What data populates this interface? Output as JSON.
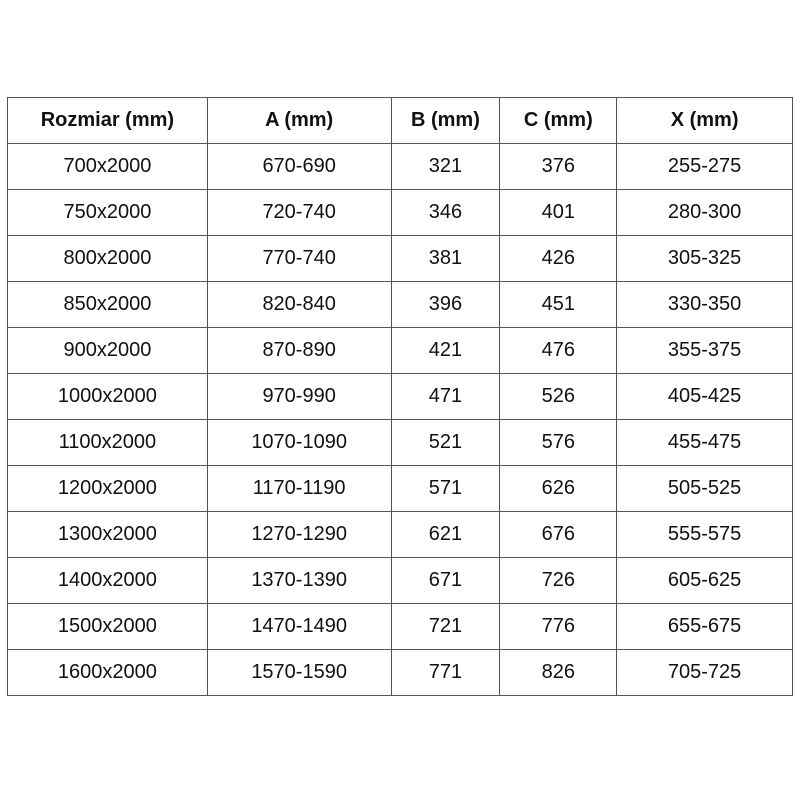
{
  "table": {
    "headers": [
      "Rozmiar (mm)",
      "A (mm)",
      "B (mm)",
      "C (mm)",
      "X (mm)"
    ],
    "rows": [
      [
        "700x2000",
        "670-690",
        "321",
        "376",
        "255-275"
      ],
      [
        "750x2000",
        "720-740",
        "346",
        "401",
        "280-300"
      ],
      [
        "800x2000",
        "770-740",
        "381",
        "426",
        "305-325"
      ],
      [
        "850x2000",
        "820-840",
        "396",
        "451",
        "330-350"
      ],
      [
        "900x2000",
        "870-890",
        "421",
        "476",
        "355-375"
      ],
      [
        "1000x2000",
        "970-990",
        "471",
        "526",
        "405-425"
      ],
      [
        "1100x2000",
        "1070-1090",
        "521",
        "576",
        "455-475"
      ],
      [
        "1200x2000",
        "1170-1190",
        "571",
        "626",
        "505-525"
      ],
      [
        "1300x2000",
        "1270-1290",
        "621",
        "676",
        "555-575"
      ],
      [
        "1400x2000",
        "1370-1390",
        "671",
        "726",
        "605-625"
      ],
      [
        "1500x2000",
        "1470-1490",
        "721",
        "776",
        "655-675"
      ],
      [
        "1600x2000",
        "1570-1590",
        "771",
        "826",
        "705-725"
      ]
    ]
  }
}
